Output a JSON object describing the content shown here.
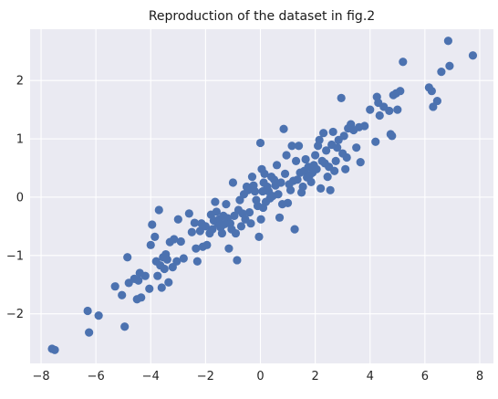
{
  "chart_data": {
    "type": "scatter",
    "title": "Reproduction of the dataset in fig.2",
    "xlabel": "",
    "ylabel": "",
    "xlim": [
      -8.4,
      8.5
    ],
    "ylim": [
      -2.85,
      2.88
    ],
    "x_ticks": [
      -8,
      -6,
      -4,
      -2,
      0,
      2,
      4,
      6,
      8
    ],
    "x_tick_labels": [
      "−8",
      "−6",
      "−4",
      "−2",
      "0",
      "2",
      "4",
      "6",
      "8"
    ],
    "y_ticks": [
      -2,
      -1,
      0,
      1,
      2
    ],
    "y_tick_labels": [
      "−2",
      "−1",
      "0",
      "1",
      "2"
    ],
    "grid": true,
    "colors": {
      "background": "#eaeaf2",
      "grid": "#ffffff",
      "point": "#4c72b0"
    },
    "series": [
      {
        "points": [
          [
            -7.6,
            -2.6
          ],
          [
            -7.5,
            -2.62
          ],
          [
            -6.3,
            -1.95
          ],
          [
            -6.25,
            -2.32
          ],
          [
            -5.9,
            -2.03
          ],
          [
            -5.3,
            -1.53
          ],
          [
            -5.05,
            -1.68
          ],
          [
            -4.95,
            -2.22
          ],
          [
            -4.8,
            -1.47
          ],
          [
            -4.6,
            -1.4
          ],
          [
            -4.85,
            -1.03
          ],
          [
            -4.5,
            -1.75
          ],
          [
            -4.4,
            -1.3
          ],
          [
            -4.35,
            -1.72
          ],
          [
            -4.45,
            -1.43
          ],
          [
            -4.2,
            -1.35
          ],
          [
            -4.05,
            -1.57
          ],
          [
            -4.0,
            -0.82
          ],
          [
            -3.95,
            -0.47
          ],
          [
            -3.85,
            -0.68
          ],
          [
            -3.8,
            -1.1
          ],
          [
            -3.75,
            -1.35
          ],
          [
            -3.7,
            -0.22
          ],
          [
            -3.65,
            -1.17
          ],
          [
            -3.6,
            -1.55
          ],
          [
            -3.55,
            -1.03
          ],
          [
            -3.5,
            -1.23
          ],
          [
            -3.45,
            -0.98
          ],
          [
            -3.4,
            -1.07
          ],
          [
            -3.35,
            -1.46
          ],
          [
            -3.3,
            -0.77
          ],
          [
            -3.2,
            -1.2
          ],
          [
            -3.15,
            -0.72
          ],
          [
            -3.05,
            -1.1
          ],
          [
            -3.0,
            -0.38
          ],
          [
            -2.9,
            -0.76
          ],
          [
            -2.8,
            -1.05
          ],
          [
            -2.6,
            -0.28
          ],
          [
            -2.5,
            -0.6
          ],
          [
            -2.4,
            -0.44
          ],
          [
            -2.35,
            -0.88
          ],
          [
            -2.3,
            -1.1
          ],
          [
            -2.2,
            -0.58
          ],
          [
            -2.15,
            -0.45
          ],
          [
            -2.1,
            -0.85
          ],
          [
            -2.0,
            -0.5
          ],
          [
            -1.95,
            -0.82
          ],
          [
            -1.85,
            -0.62
          ],
          [
            -1.8,
            -0.3
          ],
          [
            -1.75,
            -0.55
          ],
          [
            -1.7,
            -0.4
          ],
          [
            -1.65,
            -0.08
          ],
          [
            -1.6,
            -0.25
          ],
          [
            -1.55,
            -0.46
          ],
          [
            -1.5,
            -0.38
          ],
          [
            -1.45,
            -0.52
          ],
          [
            -1.4,
            -0.62
          ],
          [
            -1.35,
            -0.32
          ],
          [
            -1.3,
            -0.46
          ],
          [
            -1.25,
            -0.12
          ],
          [
            -1.2,
            -0.36
          ],
          [
            -1.15,
            -0.88
          ],
          [
            -1.1,
            -0.45
          ],
          [
            -1.05,
            -0.55
          ],
          [
            -1.0,
            0.25
          ],
          [
            -0.95,
            -0.32
          ],
          [
            -0.9,
            -0.62
          ],
          [
            -0.85,
            -1.08
          ],
          [
            -0.8,
            -0.22
          ],
          [
            -0.75,
            -0.05
          ],
          [
            -0.7,
            -0.5
          ],
          [
            -0.65,
            -0.28
          ],
          [
            -0.6,
            0.05
          ],
          [
            -0.55,
            -0.38
          ],
          [
            -0.5,
            0.18
          ],
          [
            -0.45,
            0.12
          ],
          [
            -0.4,
            -0.26
          ],
          [
            -0.35,
            -0.45
          ],
          [
            -0.3,
            0.35
          ],
          [
            -0.25,
            0.2
          ],
          [
            -0.2,
            0.1
          ],
          [
            -0.15,
            -0.05
          ],
          [
            -0.1,
            -0.15
          ],
          [
            -0.05,
            -0.68
          ],
          [
            0.0,
            0.93
          ],
          [
            0.02,
            -0.38
          ],
          [
            0.05,
            0.48
          ],
          [
            0.08,
            0.1
          ],
          [
            0.1,
            -0.18
          ],
          [
            0.12,
            0.25
          ],
          [
            0.15,
            0.4
          ],
          [
            0.2,
            -0.08
          ],
          [
            0.25,
            0.18
          ],
          [
            0.3,
            0.1
          ],
          [
            0.35,
            -0.02
          ],
          [
            0.4,
            0.35
          ],
          [
            0.45,
            0.02
          ],
          [
            0.5,
            0.3
          ],
          [
            0.55,
            0.2
          ],
          [
            0.6,
            0.55
          ],
          [
            0.65,
            0.05
          ],
          [
            0.7,
            -0.35
          ],
          [
            0.75,
            0.25
          ],
          [
            0.8,
            -0.12
          ],
          [
            0.85,
            1.17
          ],
          [
            0.9,
            0.4
          ],
          [
            0.95,
            0.72
          ],
          [
            1.0,
            -0.1
          ],
          [
            1.05,
            0.22
          ],
          [
            1.1,
            0.12
          ],
          [
            1.15,
            0.88
          ],
          [
            1.2,
            0.28
          ],
          [
            1.25,
            -0.55
          ],
          [
            1.3,
            0.62
          ],
          [
            1.35,
            0.3
          ],
          [
            1.4,
            0.88
          ],
          [
            1.45,
            0.42
          ],
          [
            1.5,
            0.08
          ],
          [
            1.55,
            0.18
          ],
          [
            1.6,
            0.45
          ],
          [
            1.65,
            0.65
          ],
          [
            1.7,
            0.34
          ],
          [
            1.75,
            0.52
          ],
          [
            1.8,
            0.38
          ],
          [
            1.85,
            0.26
          ],
          [
            1.9,
            0.42
          ],
          [
            1.95,
            0.55
          ],
          [
            2.0,
            0.72
          ],
          [
            2.05,
            0.48
          ],
          [
            2.1,
            0.88
          ],
          [
            2.15,
            0.98
          ],
          [
            2.2,
            0.15
          ],
          [
            2.25,
            0.62
          ],
          [
            2.3,
            1.1
          ],
          [
            2.35,
            0.58
          ],
          [
            2.4,
            0.8
          ],
          [
            2.45,
            0.35
          ],
          [
            2.5,
            0.52
          ],
          [
            2.55,
            0.12
          ],
          [
            2.6,
            0.9
          ],
          [
            2.65,
            1.12
          ],
          [
            2.7,
            0.45
          ],
          [
            2.75,
            0.62
          ],
          [
            2.8,
            0.85
          ],
          [
            2.85,
            0.98
          ],
          [
            2.95,
            1.7
          ],
          [
            3.0,
            0.75
          ],
          [
            3.05,
            1.05
          ],
          [
            3.1,
            0.48
          ],
          [
            3.15,
            0.68
          ],
          [
            3.2,
            1.18
          ],
          [
            3.3,
            1.25
          ],
          [
            3.4,
            1.15
          ],
          [
            3.5,
            0.85
          ],
          [
            3.6,
            1.2
          ],
          [
            3.65,
            0.6
          ],
          [
            3.8,
            1.22
          ],
          [
            4.0,
            1.5
          ],
          [
            4.2,
            0.95
          ],
          [
            4.25,
            1.72
          ],
          [
            4.3,
            1.62
          ],
          [
            4.35,
            1.4
          ],
          [
            4.5,
            1.55
          ],
          [
            4.7,
            1.48
          ],
          [
            4.75,
            1.08
          ],
          [
            4.8,
            1.05
          ],
          [
            4.85,
            1.75
          ],
          [
            4.95,
            1.78
          ],
          [
            5.0,
            1.5
          ],
          [
            5.1,
            1.82
          ],
          [
            5.2,
            2.32
          ],
          [
            6.15,
            1.88
          ],
          [
            6.25,
            1.82
          ],
          [
            6.3,
            1.55
          ],
          [
            6.45,
            1.65
          ],
          [
            6.6,
            2.15
          ],
          [
            6.85,
            2.68
          ],
          [
            6.9,
            2.25
          ],
          [
            7.75,
            2.43
          ]
        ]
      }
    ]
  }
}
